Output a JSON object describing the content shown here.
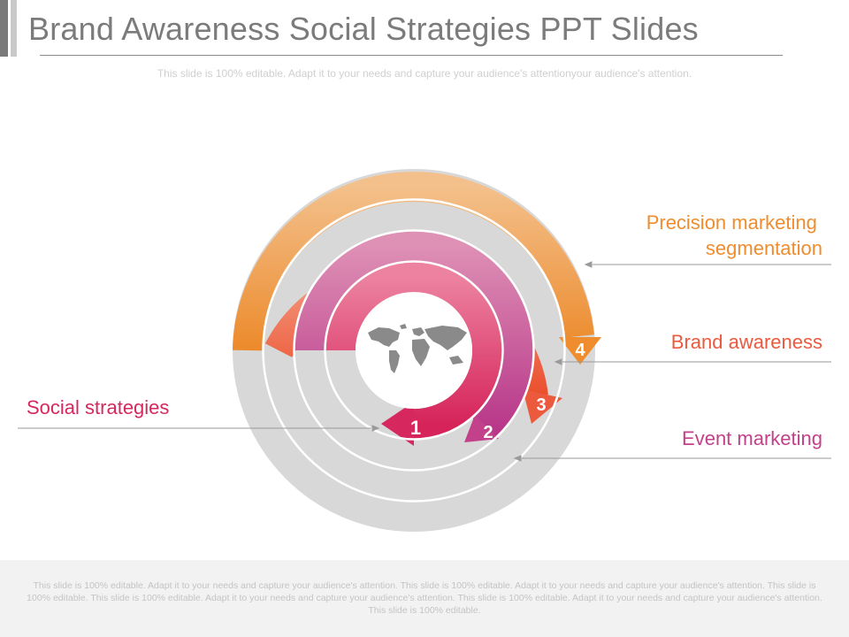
{
  "slide": {
    "title": "Brand Awareness Social Strategies PPT Slides",
    "subtitle": "This slide is 100% editable. Adapt it to your needs and capture your audience's attentionyour audience's attention.",
    "footer": "This slide is 100% editable. Adapt it to your needs and capture your audience's attention. This slide is 100% editable. Adapt it to your needs and capture your audience's attention. This slide is 100% editable. This slide is 100% editable. Adapt it to your needs and capture your audience's attention. This slide is 100% editable. Adapt it to your needs and capture your audience's attention. This slide is 100% editable."
  },
  "diagram": {
    "center_icon": "world-map-icon",
    "steps": [
      {
        "number": "1",
        "label": "Social strategies",
        "color": "#d6285e"
      },
      {
        "number": "2",
        "label": "Event marketing",
        "color": "#c3408a"
      },
      {
        "number": "3",
        "label": "Brand awareness",
        "color": "#ec5a3e"
      },
      {
        "number": "4",
        "label": "Precision marketing segmentation",
        "label_lines": [
          "Precision marketing",
          "segmentation"
        ],
        "color": "#ef8d2e"
      }
    ],
    "track_color": "#d8d8d8"
  }
}
